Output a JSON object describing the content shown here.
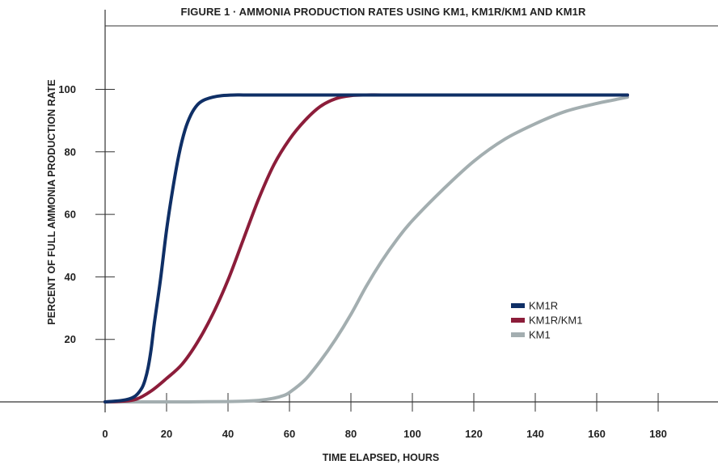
{
  "chart_data": {
    "type": "line",
    "title": "FIGURE 1 · AMMONIA PRODUCTION RATES USING KM1, KM1R/KM1 AND KM1R",
    "xlabel": "TIME ELAPSED, HOURS",
    "ylabel": "PERCENT OF FULL AMMONIA PRODUCTION RATE",
    "xlim": [
      0,
      190
    ],
    "ylim": [
      0,
      125
    ],
    "xticks": [
      0,
      20,
      40,
      60,
      80,
      100,
      120,
      140,
      160,
      180
    ],
    "yticks": [
      20,
      40,
      60,
      80,
      100
    ],
    "grid": false,
    "legend_position": "center-right",
    "series": [
      {
        "name": "KM1R",
        "color": "#0f2f66",
        "x": [
          0,
          5,
          8,
          10,
          12,
          13,
          14,
          15,
          16,
          18,
          20,
          22,
          24,
          26,
          28,
          30,
          32,
          35,
          38,
          42,
          45,
          50,
          60,
          80,
          100,
          120,
          140,
          160,
          170
        ],
        "y": [
          0,
          0.4,
          1,
          2,
          4.5,
          7,
          11,
          17,
          25,
          39,
          55,
          68,
          79,
          87,
          92,
          95,
          96.5,
          97.5,
          98,
          98.2,
          98.2,
          98.2,
          98.2,
          98.2,
          98.2,
          98.2,
          98.2,
          98.2,
          98.2
        ]
      },
      {
        "name": "KM1R/KM1",
        "color": "#8c1d3a",
        "x": [
          0,
          5,
          10,
          15,
          20,
          25,
          30,
          35,
          40,
          45,
          50,
          55,
          60,
          65,
          70,
          75,
          80,
          85,
          90,
          100,
          120,
          140,
          160,
          170
        ],
        "y": [
          0,
          0.2,
          0.8,
          3.5,
          7.5,
          12,
          19,
          28,
          39,
          52,
          65,
          76,
          84,
          90,
          94.5,
          97,
          98,
          98.2,
          98.2,
          98.2,
          98.2,
          98.2,
          98.2,
          98.2
        ]
      },
      {
        "name": "KM1",
        "color": "#a3aeb0",
        "x": [
          0,
          20,
          40,
          50,
          55,
          58,
          60,
          65,
          70,
          75,
          80,
          85,
          90,
          95,
          100,
          110,
          120,
          130,
          140,
          150,
          160,
          165,
          170
        ],
        "y": [
          0,
          0,
          0.1,
          0.5,
          1.2,
          2,
          3,
          7,
          13,
          20,
          28,
          37,
          45,
          52,
          58,
          68,
          77,
          84,
          89,
          93,
          95.5,
          96.5,
          97.5
        ]
      }
    ]
  }
}
